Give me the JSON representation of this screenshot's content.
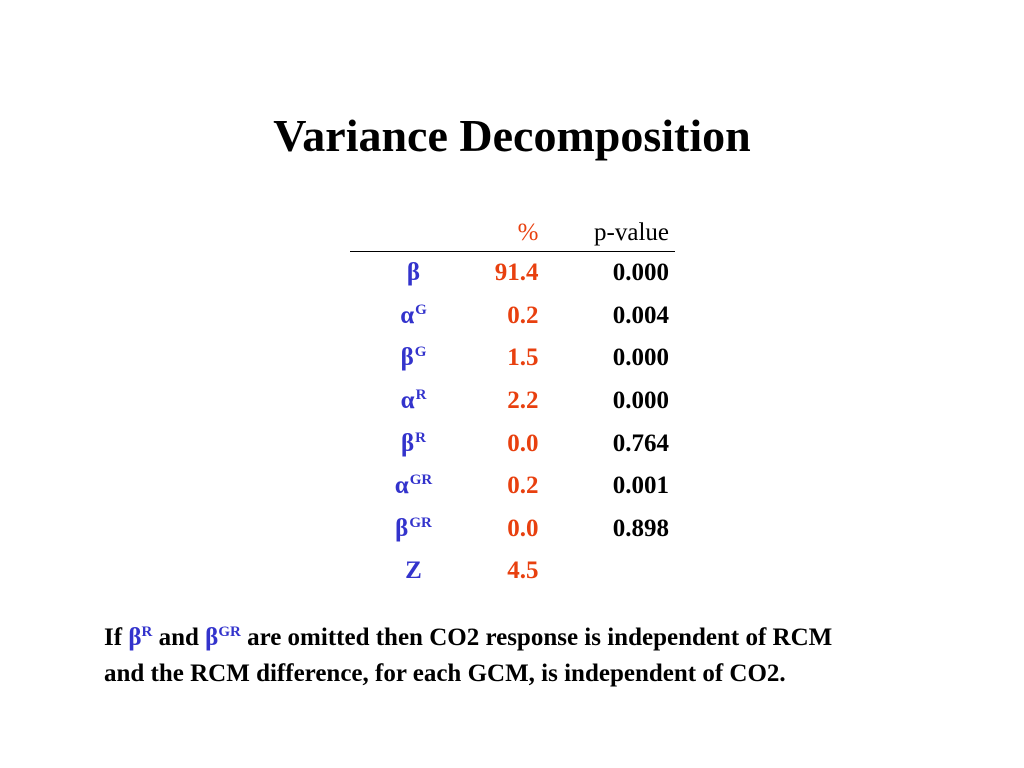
{
  "title": "Variance Decomposition",
  "table": {
    "headers": {
      "param": "",
      "pct": "%",
      "pvalue": "p-value"
    },
    "rows": [
      {
        "symbol": "β",
        "sup": "",
        "pct": "91.4",
        "pvalue": "0.000"
      },
      {
        "symbol": "α",
        "sup": "G",
        "pct": "0.2",
        "pvalue": "0.004"
      },
      {
        "symbol": "β",
        "sup": "G",
        "pct": "1.5",
        "pvalue": "0.000"
      },
      {
        "symbol": "α",
        "sup": "R",
        "pct": "2.2",
        "pvalue": "0.000"
      },
      {
        "symbol": "β",
        "sup": "R",
        "pct": "0.0",
        "pvalue": "0.764"
      },
      {
        "symbol": "α",
        "sup": "GR",
        "pct": "0.2",
        "pvalue": "0.001"
      },
      {
        "symbol": "β",
        "sup": "GR",
        "pct": "0.0",
        "pvalue": "0.898"
      },
      {
        "symbol": "Z",
        "sup": "",
        "pct": "4.5",
        "pvalue": ""
      }
    ]
  },
  "footnote": {
    "if": "If",
    "beta1": "β",
    "beta1_sup": "R",
    "and": "and",
    "beta2": "β",
    "beta2_sup": "GR",
    "line1_rest": "are omitted then CO2 response is independent of RCM",
    "line2": "and the RCM difference, for each GCM, is independent of CO2."
  },
  "colors": {
    "parameter_symbols": "#3333cc",
    "percent_values": "#e8400f",
    "text": "#000000"
  }
}
